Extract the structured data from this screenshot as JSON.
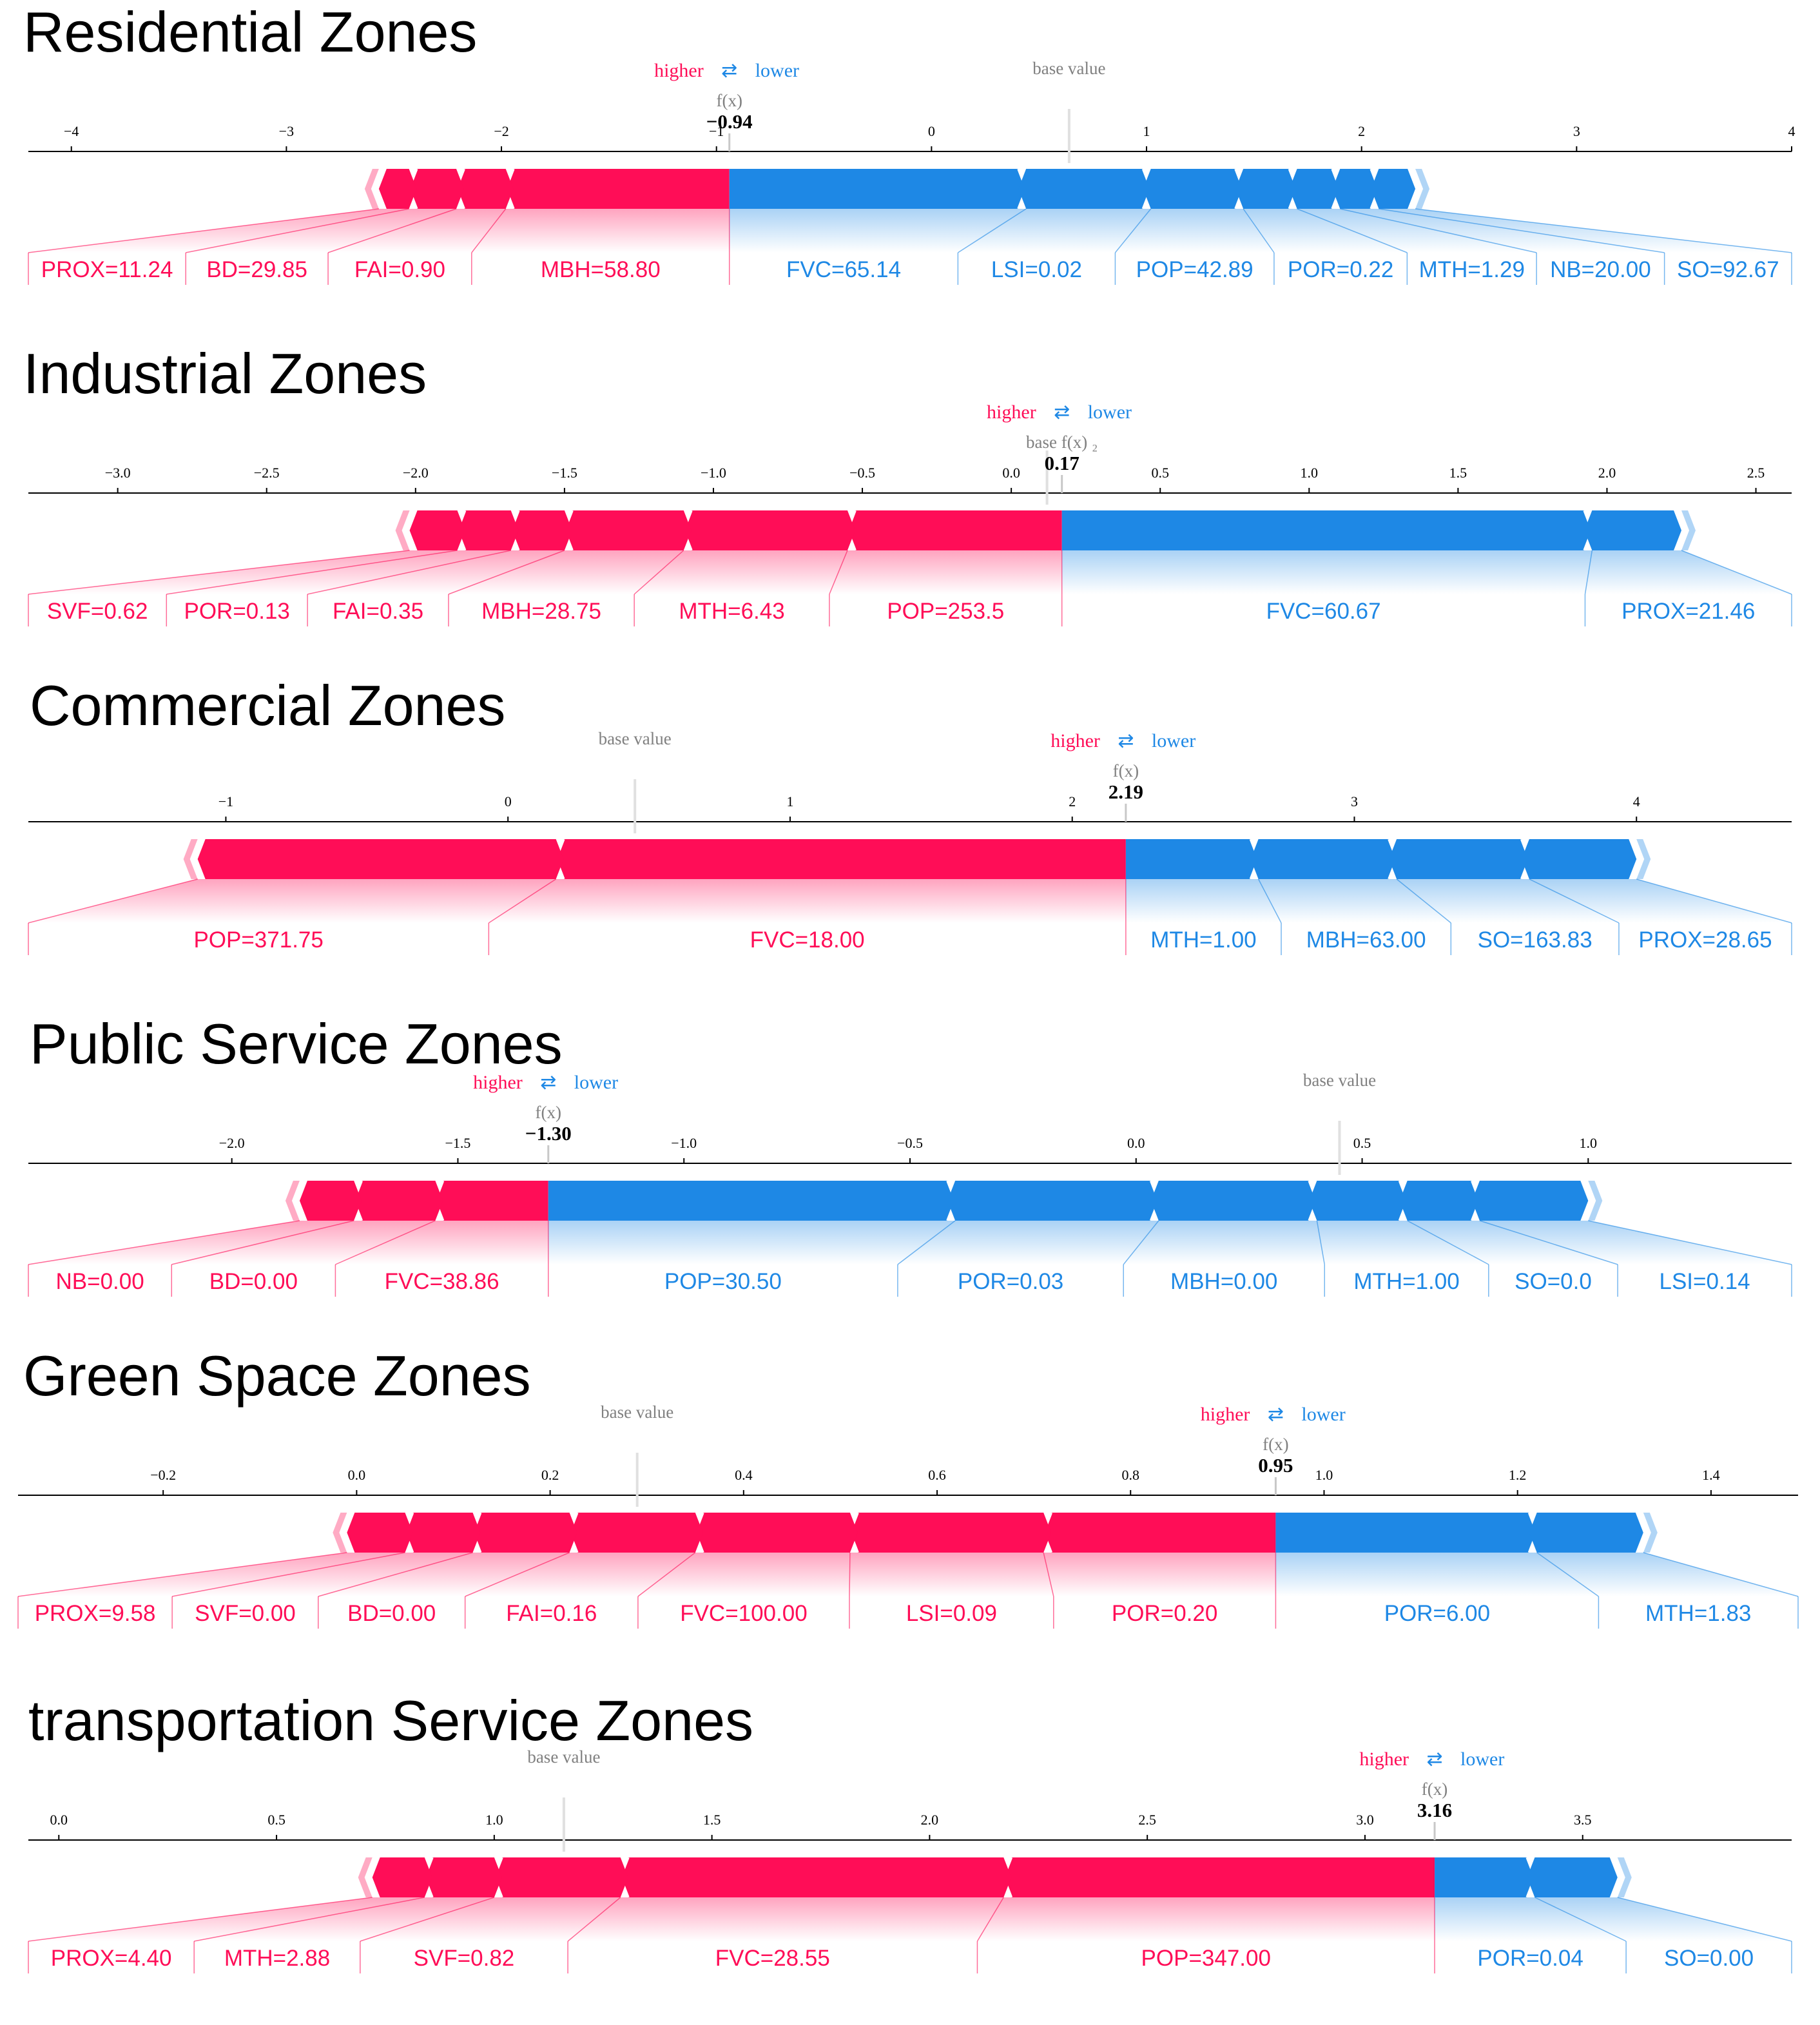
{
  "colors": {
    "higher": "#ff0d57",
    "lower": "#1e88e5",
    "base": "#e0e0e0"
  },
  "legend": {
    "higher": "higher",
    "lower": "lower",
    "arrow": "⇄"
  },
  "labels": {
    "fx": "f(x)",
    "base": "base value",
    "base_fx": "base f(x) ₂"
  },
  "chart_data": [
    {
      "type": "force-plot",
      "title": "Residential Zones",
      "xlim": [
        -4.2,
        4.0
      ],
      "ticks": [
        -4,
        -3,
        -2,
        -1,
        0,
        1,
        2,
        3,
        4
      ],
      "tick_labels": [
        "−4",
        "−3",
        "−2",
        "−1",
        "0",
        "1",
        "2",
        "3",
        "4"
      ],
      "fx": -0.94,
      "fx_label": "−0.94",
      "base_value": 0.64,
      "positive": [
        {
          "feature": "MBH",
          "value": "58.80",
          "start": -0.94,
          "end": -1.98
        },
        {
          "feature": "FAI",
          "value": "0.90",
          "start": -1.98,
          "end": -2.21
        },
        {
          "feature": "BD",
          "value": "29.85",
          "start": -2.21,
          "end": -2.43
        },
        {
          "feature": "PROX",
          "value": "11.24",
          "start": -2.43,
          "end": -2.57
        }
      ],
      "negative": [
        {
          "feature": "FVC",
          "value": "65.14",
          "start": -0.94,
          "end": 0.44
        },
        {
          "feature": "LSI",
          "value": "0.02",
          "start": 0.44,
          "end": 1.02
        },
        {
          "feature": "POP",
          "value": "42.89",
          "start": 1.02,
          "end": 1.45
        },
        {
          "feature": "POR",
          "value": "0.22",
          "start": 1.45,
          "end": 1.7
        },
        {
          "feature": "MTH",
          "value": "1.29",
          "start": 1.7,
          "end": 1.9
        },
        {
          "feature": "NB",
          "value": "20.00",
          "start": 1.9,
          "end": 2.08
        },
        {
          "feature": "SO",
          "value": "92.67",
          "start": 2.08,
          "end": 2.25
        }
      ]
    },
    {
      "type": "force-plot",
      "title": "Industrial Zones",
      "xlim": [
        -3.3,
        2.62
      ],
      "ticks": [
        -3.0,
        -2.5,
        -2.0,
        -1.5,
        -1.0,
        -0.5,
        0.0,
        0.5,
        1.0,
        1.5,
        2.0,
        2.5
      ],
      "tick_labels": [
        "−3.0",
        "−2.5",
        "−2.0",
        "−1.5",
        "−1.0",
        "−0.5",
        "0.0",
        "0.5",
        "1.0",
        "1.5",
        "2.0",
        "2.5"
      ],
      "fx": 0.17,
      "fx_label": "0.17",
      "base_value": 0.12,
      "base_style": "combined",
      "positive": [
        {
          "feature": "POP",
          "value": "253.5",
          "start": 0.17,
          "end": -0.55
        },
        {
          "feature": "MTH",
          "value": "6.43",
          "start": -0.55,
          "end": -1.1
        },
        {
          "feature": "MBH",
          "value": "28.75",
          "start": -1.1,
          "end": -1.5
        },
        {
          "feature": "FAI",
          "value": "0.35",
          "start": -1.5,
          "end": -1.68
        },
        {
          "feature": "POR",
          "value": "0.13",
          "start": -1.68,
          "end": -1.86
        },
        {
          "feature": "SVF",
          "value": "0.62",
          "start": -1.86,
          "end": -2.02
        }
      ],
      "negative": [
        {
          "feature": "FVC",
          "value": "60.67",
          "start": 0.17,
          "end": 1.95
        },
        {
          "feature": "PROX",
          "value": "21.46",
          "start": 1.95,
          "end": 2.25
        }
      ]
    },
    {
      "type": "force-plot",
      "title": "Commercial Zones",
      "xlim": [
        -1.7,
        4.55
      ],
      "ticks": [
        -1,
        0,
        1,
        2,
        3,
        4
      ],
      "tick_labels": [
        "−1",
        "0",
        "1",
        "2",
        "3",
        "4"
      ],
      "fx": 2.19,
      "fx_label": "2.19",
      "base_value": 0.45,
      "positive": [
        {
          "feature": "FVC",
          "value": "18.00",
          "start": 2.19,
          "end": 0.17
        },
        {
          "feature": "POP",
          "value": "371.75",
          "start": 0.17,
          "end": -1.1
        }
      ],
      "negative": [
        {
          "feature": "MTH",
          "value": "1.00",
          "start": 2.19,
          "end": 2.66
        },
        {
          "feature": "MBH",
          "value": "63.00",
          "start": 2.66,
          "end": 3.15
        },
        {
          "feature": "SO",
          "value": "163.83",
          "start": 3.15,
          "end": 3.62
        },
        {
          "feature": "PROX",
          "value": "28.65",
          "start": 3.62,
          "end": 4.0
        }
      ]
    },
    {
      "type": "force-plot",
      "title": "Public Service Zones",
      "xlim": [
        -2.45,
        1.45
      ],
      "ticks": [
        -2.0,
        -1.5,
        -1.0,
        -0.5,
        0.0,
        0.5,
        1.0
      ],
      "tick_labels": [
        "−2.0",
        "−1.5",
        "−1.0",
        "−0.5",
        "0.0",
        "0.5",
        "1.0"
      ],
      "fx": -1.3,
      "fx_label": "−1.30",
      "base_value": 0.45,
      "positive": [
        {
          "feature": "FVC",
          "value": "38.86",
          "start": -1.3,
          "end": -1.55
        },
        {
          "feature": "BD",
          "value": "0.00",
          "start": -1.55,
          "end": -1.73
        },
        {
          "feature": "NB",
          "value": "0.00",
          "start": -1.73,
          "end": -1.85
        }
      ],
      "negative": [
        {
          "feature": "POP",
          "value": "30.50",
          "start": -1.3,
          "end": -0.4
        },
        {
          "feature": "POR",
          "value": "0.03",
          "start": -0.4,
          "end": 0.05
        },
        {
          "feature": "MBH",
          "value": "0.00",
          "start": 0.05,
          "end": 0.4
        },
        {
          "feature": "MTH",
          "value": "1.00",
          "start": 0.4,
          "end": 0.6
        },
        {
          "feature": "SO",
          "value": "0.0",
          "start": 0.6,
          "end": 0.76
        },
        {
          "feature": "LSI",
          "value": "0.14",
          "start": 0.76,
          "end": 1.0
        }
      ]
    },
    {
      "type": "force-plot",
      "title": "Green Space Zones",
      "xlim": [
        -0.35,
        1.49
      ],
      "ticks": [
        -0.2,
        0.0,
        0.2,
        0.4,
        0.6,
        0.8,
        1.0,
        1.2,
        1.4
      ],
      "tick_labels": [
        "−0.2",
        "0.0",
        "0.2",
        "0.4",
        "0.6",
        "0.8",
        "1.0",
        "1.2",
        "1.4"
      ],
      "fx": 0.95,
      "fx_label": "0.95",
      "base_value": 0.29,
      "positive": [
        {
          "feature": "POR",
          "value": "0.20",
          "start": 0.95,
          "end": 0.71
        },
        {
          "feature": "LSI",
          "value": "0.09",
          "start": 0.71,
          "end": 0.51
        },
        {
          "feature": "FVC",
          "value": "100.00",
          "start": 0.51,
          "end": 0.35
        },
        {
          "feature": "FAI",
          "value": "0.16",
          "start": 0.35,
          "end": 0.22
        },
        {
          "feature": "BD",
          "value": "0.00",
          "start": 0.22,
          "end": 0.12
        },
        {
          "feature": "SVF",
          "value": "0.00",
          "start": 0.12,
          "end": 0.05
        },
        {
          "feature": "PROX",
          "value": "9.58",
          "start": 0.05,
          "end": -0.01
        }
      ],
      "negative": [
        {
          "feature": "POR",
          "value": "6.00",
          "start": 0.95,
          "end": 1.22
        },
        {
          "feature": "MTH",
          "value": "1.83",
          "start": 1.22,
          "end": 1.33
        }
      ]
    },
    {
      "type": "force-plot",
      "title": "transportation Service Zones",
      "xlim": [
        -0.07,
        3.98
      ],
      "ticks": [
        0.0,
        0.5,
        1.0,
        1.5,
        2.0,
        2.5,
        3.0,
        3.5
      ],
      "tick_labels": [
        "0.0",
        "0.5",
        "1.0",
        "1.5",
        "2.0",
        "2.5",
        "3.0",
        "3.5"
      ],
      "fx": 3.16,
      "fx_label": "3.16",
      "base_value": 1.16,
      "positive": [
        {
          "feature": "POP",
          "value": "347.00",
          "start": 3.16,
          "end": 2.17
        },
        {
          "feature": "FVC",
          "value": "28.55",
          "start": 2.17,
          "end": 1.29
        },
        {
          "feature": "SVF",
          "value": "0.82",
          "start": 1.29,
          "end": 1.0
        },
        {
          "feature": "MTH",
          "value": "2.88",
          "start": 1.0,
          "end": 0.84
        },
        {
          "feature": "PROX",
          "value": "4.40",
          "start": 0.84,
          "end": 0.72
        }
      ],
      "negative": [
        {
          "feature": "POR",
          "value": "0.04",
          "start": 3.16,
          "end": 3.39
        },
        {
          "feature": "SO",
          "value": "0.00",
          "start": 3.39,
          "end": 3.58
        }
      ]
    }
  ]
}
